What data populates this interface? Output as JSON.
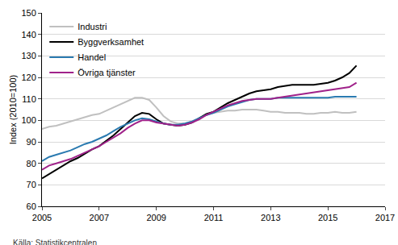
{
  "chart_data": {
    "type": "line",
    "y_label": "Index (2010=100)",
    "source": "Källa: Statistikcentralen",
    "x": [
      2005,
      2005.25,
      2005.5,
      2005.75,
      2006,
      2006.25,
      2006.5,
      2006.75,
      2007,
      2007.25,
      2007.5,
      2007.75,
      2008,
      2008.25,
      2008.5,
      2008.75,
      2009,
      2009.25,
      2009.5,
      2009.75,
      2010,
      2010.25,
      2010.5,
      2010.75,
      2011,
      2011.25,
      2011.5,
      2011.75,
      2012,
      2012.25,
      2012.5,
      2012.75,
      2013,
      2013.25,
      2013.5,
      2013.75,
      2014,
      2014.25,
      2014.5,
      2014.75,
      2015,
      2015.25,
      2015.5,
      2015.75,
      2016
    ],
    "series": [
      {
        "name": "Industri",
        "color": "#c0c0c0",
        "values": [
          96,
          97,
          97.5,
          98.5,
          99.5,
          100.5,
          101.5,
          102.5,
          103,
          104.5,
          106,
          107.5,
          109,
          110.5,
          110.5,
          109.5,
          106,
          102,
          99.5,
          98.5,
          98.5,
          99.5,
          101,
          102.5,
          103.5,
          104,
          104.5,
          104.5,
          105,
          105,
          105,
          104.5,
          104,
          104,
          103.5,
          103.5,
          103.5,
          103,
          103,
          103.5,
          103.5,
          104,
          103.5,
          103.5,
          104
        ]
      },
      {
        "name": "Byggverksamhet",
        "color": "#000000",
        "values": [
          73,
          75,
          77,
          79,
          81,
          82.5,
          84.5,
          86.5,
          88,
          90.5,
          93,
          96,
          99,
          102,
          103.5,
          103,
          100.5,
          98.5,
          98,
          97.5,
          98,
          99,
          101,
          103,
          104,
          106,
          108,
          109.5,
          111,
          112.5,
          113.5,
          114,
          114.5,
          115.5,
          116,
          116.5,
          116.5,
          116.5,
          116.5,
          117,
          117.5,
          118.5,
          120,
          122,
          125.5
        ]
      },
      {
        "name": "Handel",
        "color": "#2a7ab0",
        "values": [
          81,
          83,
          84,
          85,
          86,
          87.5,
          89,
          90,
          91.5,
          93,
          95,
          97,
          98.5,
          100,
          101,
          100.5,
          99.5,
          98.5,
          98,
          98,
          98.5,
          99.5,
          101,
          102.5,
          103.5,
          105,
          106.5,
          107.5,
          108.5,
          109.5,
          110,
          110,
          110,
          110.5,
          110.5,
          110.5,
          110.5,
          110.5,
          110.5,
          110.5,
          110.5,
          111,
          111,
          111,
          111
        ]
      },
      {
        "name": "Övriga tjänster",
        "color": "#a0228a",
        "values": [
          77,
          79,
          80,
          81,
          82,
          83.5,
          85,
          86.5,
          88,
          90,
          92,
          94,
          96.5,
          98.5,
          100,
          100,
          99,
          98.5,
          98,
          97.5,
          98,
          99,
          100.5,
          102.5,
          104,
          105.5,
          107,
          108,
          109,
          109.5,
          110,
          110,
          110,
          110.5,
          111,
          111.5,
          112,
          112.5,
          113,
          113.5,
          114,
          114.5,
          115,
          115.5,
          117.5
        ]
      }
    ],
    "xlim": [
      2005,
      2017
    ],
    "xticks": [
      2005,
      2007,
      2009,
      2011,
      2013,
      2015,
      2017
    ],
    "ylim": [
      60,
      150
    ],
    "yticks": [
      60,
      70,
      80,
      90,
      100,
      110,
      120,
      130,
      140,
      150
    ],
    "grid": true,
    "legend": "top-left"
  }
}
